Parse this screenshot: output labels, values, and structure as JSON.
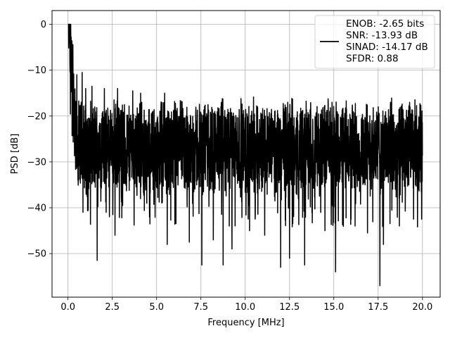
{
  "chart_data": {
    "type": "line",
    "title": "",
    "xlabel": "Frequency [MHz]",
    "ylabel": "PSD [dB]",
    "xlim": [
      -0.9,
      21.0
    ],
    "ylim": [
      -59.5,
      3.0
    ],
    "xticks": [
      0.0,
      2.5,
      5.0,
      7.5,
      10.0,
      12.5,
      15.0,
      17.5,
      20.0
    ],
    "xtick_labels": [
      "0.0",
      "2.5",
      "5.0",
      "7.5",
      "10.0",
      "12.5",
      "15.0",
      "17.5",
      "20.0"
    ],
    "yticks": [
      0,
      -10,
      -20,
      -30,
      -40,
      -50
    ],
    "ytick_labels": [
      "0",
      "−10",
      "−20",
      "−30",
      "−40",
      "−50"
    ],
    "grid": true,
    "legend_position": "top-right",
    "line_color": "#000000",
    "series": [
      {
        "name": "",
        "description": "dense noisy power spectral density from 0 to 20 MHz",
        "x_range": [
          0.0,
          20.0
        ],
        "peak": {
          "x": 0.0,
          "y": 0
        },
        "noise_floor_mean": -27,
        "upper_envelope": -17,
        "lower_envelope": -40,
        "deep_dips": [
          {
            "x": 0.85,
            "y": -41
          },
          {
            "x": 1.65,
            "y": -51.5
          },
          {
            "x": 2.15,
            "y": -41
          },
          {
            "x": 2.65,
            "y": -46
          },
          {
            "x": 4.6,
            "y": -42
          },
          {
            "x": 5.6,
            "y": -48
          },
          {
            "x": 6.85,
            "y": -47.5
          },
          {
            "x": 7.55,
            "y": -52.5
          },
          {
            "x": 8.2,
            "y": -47
          },
          {
            "x": 8.75,
            "y": -52.5
          },
          {
            "x": 9.1,
            "y": -44
          },
          {
            "x": 9.25,
            "y": -49
          },
          {
            "x": 10.25,
            "y": -45
          },
          {
            "x": 11.1,
            "y": -46
          },
          {
            "x": 12.0,
            "y": -53
          },
          {
            "x": 12.5,
            "y": -51
          },
          {
            "x": 13.35,
            "y": -52.5
          },
          {
            "x": 14.5,
            "y": -45
          },
          {
            "x": 15.1,
            "y": -54
          },
          {
            "x": 16.2,
            "y": -44
          },
          {
            "x": 16.9,
            "y": -45.5
          },
          {
            "x": 17.6,
            "y": -57
          },
          {
            "x": 17.8,
            "y": -48
          },
          {
            "x": 18.7,
            "y": -44
          },
          {
            "x": 19.5,
            "y": -42.5
          },
          {
            "x": 19.95,
            "y": -42.5
          }
        ],
        "peaks": [
          {
            "x": 0.5,
            "y": -11
          },
          {
            "x": 0.8,
            "y": -10.5
          },
          {
            "x": 1.0,
            "y": -14
          },
          {
            "x": 1.35,
            "y": -13.5
          },
          {
            "x": 2.05,
            "y": -14
          },
          {
            "x": 2.8,
            "y": -14
          },
          {
            "x": 3.65,
            "y": -14.5
          },
          {
            "x": 4.1,
            "y": -15
          },
          {
            "x": 5.45,
            "y": -15
          },
          {
            "x": 7.9,
            "y": -17.5
          },
          {
            "x": 12.4,
            "y": -17
          },
          {
            "x": 14.9,
            "y": -17
          },
          {
            "x": 18.2,
            "y": -17
          },
          {
            "x": 19.3,
            "y": -18
          }
        ]
      }
    ],
    "legend": {
      "lines": [
        "ENOB: -2.65 bits",
        "SNR: -13.93 dB",
        "SINAD: -14.17 dB",
        "SFDR: 0.88"
      ]
    }
  }
}
